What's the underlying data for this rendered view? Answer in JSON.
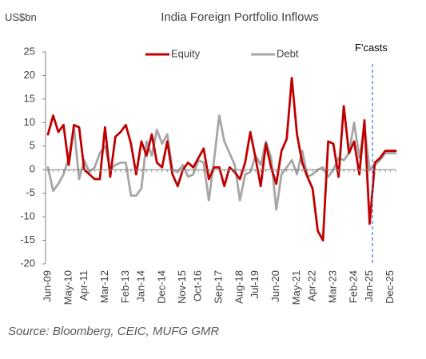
{
  "chart_data": {
    "type": "line",
    "title": "India Foreign Portfolio Inflows",
    "unit_label": "US$bn",
    "ylim": [
      -20,
      25
    ],
    "yticks": [
      -20,
      -15,
      -10,
      -5,
      0,
      5,
      10,
      15,
      20,
      25
    ],
    "x_tick_labels": [
      "Jun-09",
      "May-10",
      "Apr-11",
      "Mar-12",
      "Feb-13",
      "Jan-14",
      "Dec-14",
      "Nov-15",
      "Oct-16",
      "Sep-17",
      "Aug-18",
      "Jul-19",
      "Jun-20",
      "May-21",
      "Apr-22",
      "Mar-23",
      "Feb-24",
      "Jan-25",
      "Dec-25"
    ],
    "x_tick_quarter_index": [
      0,
      4,
      7,
      11,
      15,
      18,
      22,
      26,
      29,
      33,
      37,
      40,
      44,
      48,
      51,
      55,
      59,
      62,
      66
    ],
    "quarters_total": 68,
    "grid": false,
    "legend": "top-center",
    "forecast_label": "F'casts",
    "forecast_start_quarter_index": 63,
    "series": [
      {
        "name": "Equity",
        "color": "#c00000",
        "values": [
          7.5,
          11.5,
          8,
          9.5,
          1,
          9.5,
          9,
          0,
          -1,
          -2,
          -2,
          9,
          -1.5,
          7,
          8,
          9.5,
          5.5,
          -1,
          6,
          3,
          7.5,
          1.5,
          0.5,
          6,
          -1,
          -3.5,
          0,
          1.5,
          0.5,
          2.5,
          4.5,
          -2,
          0.5,
          0.5,
          -3.5,
          0.5,
          -0.5,
          -2,
          1.5,
          8,
          2.5,
          -3.5,
          5.5,
          0.5,
          -3,
          4,
          6.5,
          19.5,
          7.5,
          1.5,
          -1.5,
          -4,
          -13,
          -15,
          6,
          5.5,
          -1.5,
          13.5,
          3.5,
          6,
          -1,
          10.5,
          -11.5,
          1.5,
          2.5,
          4,
          4,
          4
        ]
      },
      {
        "name": "Debt",
        "color": "#a6a6a6",
        "values": [
          0.5,
          -4.5,
          -3,
          -1,
          2.5,
          9,
          -2,
          2,
          -0.5,
          0.5,
          3.5,
          5,
          0,
          1,
          1.5,
          1.5,
          -5.5,
          -5.5,
          -4,
          6,
          3,
          8.5,
          5.5,
          7.5,
          0,
          -0.5,
          1,
          -1.5,
          -1,
          2,
          1.5,
          -6.5,
          2,
          11.5,
          6,
          3.5,
          1,
          -6.5,
          -1,
          -0.5,
          3,
          1,
          6,
          2.5,
          -8.5,
          -1,
          0.5,
          2,
          -1,
          4,
          -1.5,
          -1,
          0,
          0.5,
          -1.5,
          0,
          2.5,
          2,
          3.5,
          10,
          2.5,
          9,
          0,
          1,
          2,
          3.5,
          3.5,
          3.5
        ]
      }
    ],
    "source": "Source: Bloomberg, CEIC, MUFG GMR"
  }
}
